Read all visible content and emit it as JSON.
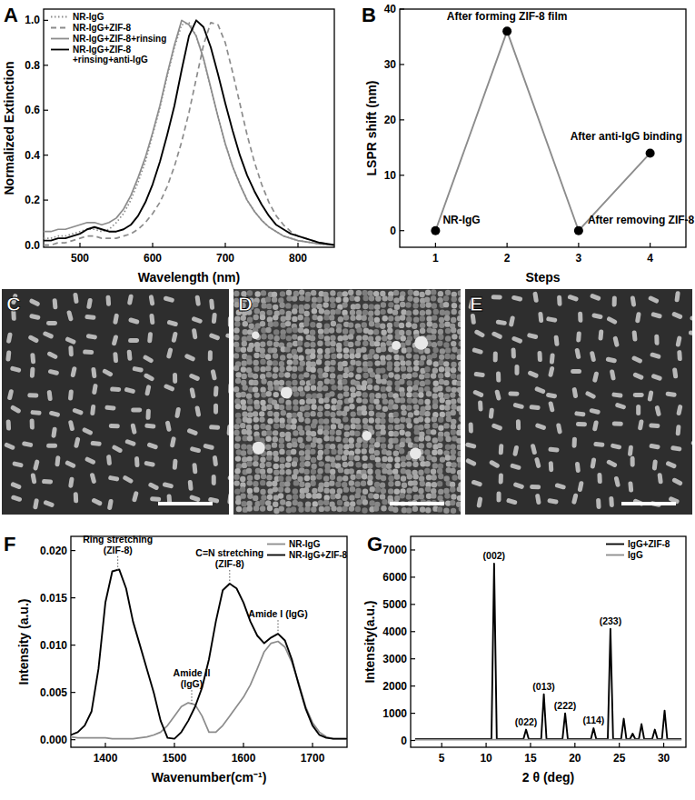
{
  "chart_data": [
    {
      "panel": "A",
      "type": "line",
      "x_label": "Wavelength (nm)",
      "y_label": "Normalized Extinction",
      "x": [
        450,
        460,
        470,
        480,
        490,
        500,
        510,
        520,
        530,
        540,
        550,
        560,
        570,
        580,
        590,
        600,
        610,
        620,
        630,
        640,
        650,
        660,
        670,
        680,
        690,
        700,
        710,
        720,
        730,
        740,
        750,
        760,
        770,
        780,
        790,
        800,
        810,
        820,
        830,
        840,
        850
      ],
      "series": [
        {
          "name": "NR-IgG",
          "color": "#8c8c8c",
          "line_style": "dotted",
          "values": [
            0.03,
            0.03,
            0.04,
            0.04,
            0.05,
            0.06,
            0.07,
            0.07,
            0.06,
            0.07,
            0.1,
            0.14,
            0.2,
            0.28,
            0.37,
            0.49,
            0.61,
            0.75,
            0.88,
            0.98,
            0.99,
            0.93,
            0.83,
            0.7,
            0.57,
            0.45,
            0.35,
            0.27,
            0.2,
            0.15,
            0.11,
            0.08,
            0.06,
            0.04,
            0.03,
            0.02,
            0.015,
            0.01,
            0.005,
            0.003,
            0
          ]
        },
        {
          "name": "NR-IgG+ZIF-8",
          "color": "#8c8c8c",
          "line_style": "dashed",
          "values": [
            0,
            0,
            0.01,
            0.01,
            0.02,
            0.03,
            0.04,
            0.04,
            0.03,
            0.03,
            0.03,
            0.04,
            0.05,
            0.07,
            0.1,
            0.14,
            0.19,
            0.26,
            0.35,
            0.46,
            0.59,
            0.74,
            0.89,
            0.99,
            0.98,
            0.9,
            0.77,
            0.63,
            0.49,
            0.37,
            0.27,
            0.19,
            0.13,
            0.09,
            0.06,
            0.04,
            0.03,
            0.02,
            0.01,
            0.005,
            0
          ]
        },
        {
          "name": "NR-IgG+ZIF-8+rinsing",
          "color": "#8c8c8c",
          "line_style": "solid",
          "values": [
            0.06,
            0.06,
            0.07,
            0.07,
            0.08,
            0.09,
            0.1,
            0.1,
            0.09,
            0.1,
            0.12,
            0.16,
            0.22,
            0.3,
            0.39,
            0.5,
            0.62,
            0.76,
            0.89,
            1.0,
            0.98,
            0.93,
            0.83,
            0.7,
            0.57,
            0.45,
            0.35,
            0.27,
            0.2,
            0.15,
            0.11,
            0.08,
            0.06,
            0.04,
            0.03,
            0.02,
            0.015,
            0.01,
            0.005,
            0.003,
            0
          ]
        },
        {
          "name": "NR-IgG+ZIF-8+rinsing+anti-IgG",
          "color": "#000000",
          "line_style": "solid",
          "values": [
            0.02,
            0.02,
            0.03,
            0.03,
            0.04,
            0.05,
            0.07,
            0.08,
            0.07,
            0.06,
            0.06,
            0.07,
            0.09,
            0.13,
            0.19,
            0.27,
            0.37,
            0.49,
            0.62,
            0.78,
            0.93,
            1.0,
            0.97,
            0.88,
            0.76,
            0.63,
            0.51,
            0.4,
            0.31,
            0.24,
            0.18,
            0.13,
            0.09,
            0.07,
            0.05,
            0.04,
            0.03,
            0.02,
            0.01,
            0.005,
            0
          ]
        }
      ],
      "xlim": [
        450,
        850
      ],
      "ylim": [
        -0.01,
        1.05
      ],
      "xticks": [
        500,
        600,
        700,
        800
      ],
      "yticks": [
        {
          "value": 0,
          "label": "0.0"
        },
        {
          "value": 0.2,
          "label": "0.2"
        },
        {
          "value": 0.4,
          "label": "0.4"
        },
        {
          "value": 0.6,
          "label": "0.6"
        },
        {
          "value": 0.8,
          "label": "0.8"
        },
        {
          "value": 1.0,
          "label": "1.0"
        }
      ],
      "legend": "upper left"
    },
    {
      "panel": "B",
      "type": "line",
      "x_label": "Steps",
      "y_label": "LSPR shift (nm)",
      "marker": "circle",
      "x": [
        1,
        2,
        3,
        4
      ],
      "series": [
        {
          "color": "#000000",
          "values": [
            0,
            36,
            0,
            14
          ]
        }
      ],
      "point_labels": [
        "NR-IgG",
        "After forming ZIF-8 film",
        "After removing ZIF-8",
        "After anti-IgG binding"
      ],
      "xlim": [
        0.5,
        4.5
      ],
      "ylim": [
        -3,
        40
      ],
      "xticks": [
        1,
        2,
        3,
        4
      ],
      "yticks": [
        0,
        10,
        20,
        30,
        40
      ]
    },
    {
      "panel": "F",
      "type": "line",
      "x_label": "Wavenumber(cm⁻¹)",
      "y_label": "Intensity (a.u.)",
      "x": [
        1350,
        1360,
        1370,
        1380,
        1390,
        1400,
        1410,
        1420,
        1430,
        1440,
        1450,
        1460,
        1470,
        1480,
        1490,
        1500,
        1510,
        1520,
        1530,
        1540,
        1550,
        1560,
        1570,
        1580,
        1590,
        1600,
        1610,
        1620,
        1630,
        1640,
        1650,
        1660,
        1670,
        1680,
        1690,
        1700,
        1710,
        1720,
        1730,
        1740,
        1750
      ],
      "series": [
        {
          "name": "NR-IgG",
          "color": "#8c8c8c",
          "values": [
            0.0003,
            0.0002,
            0.0002,
            0.0002,
            0.0002,
            0.0002,
            0.0001,
            0.0001,
            0.0001,
            0.0001,
            0.0002,
            0.0003,
            0.0005,
            0.0008,
            0.0015,
            0.0025,
            0.0035,
            0.0039,
            0.0037,
            0.0025,
            0.0008,
            0.0008,
            0.0015,
            0.0025,
            0.0035,
            0.0045,
            0.0058,
            0.0075,
            0.0093,
            0.0102,
            0.0104,
            0.0098,
            0.0082,
            0.006,
            0.0035,
            0.0018,
            0.0008,
            0.0003,
            0.0001,
            0.0001,
            0.0001
          ]
        },
        {
          "name": "NR-IgG+ZIF-8",
          "color": "#000000",
          "values": [
            0.0005,
            0.0008,
            0.0015,
            0.003,
            0.0075,
            0.0145,
            0.0178,
            0.018,
            0.016,
            0.0125,
            0.01,
            0.0075,
            0.005,
            0.002,
            0.0002,
            0.0001,
            0.0008,
            0.002,
            0.0035,
            0.0055,
            0.0085,
            0.0125,
            0.0158,
            0.0165,
            0.016,
            0.0145,
            0.0125,
            0.011,
            0.0102,
            0.0108,
            0.0112,
            0.0105,
            0.0085,
            0.0058,
            0.0033,
            0.0015,
            0.0005,
            0.0002,
            0.0001,
            0.0001,
            0.0001
          ]
        }
      ],
      "annotations": [
        {
          "text": [
            "Ring stretching",
            "(ZIF-8)"
          ],
          "x": 1418
        },
        {
          "text": [
            "Amide II",
            "(IgG)"
          ],
          "x": 1525
        },
        {
          "text": [
            "C=N stretching",
            "(ZIF-8)"
          ],
          "x": 1580
        },
        {
          "text": [
            "Amide I (IgG)"
          ],
          "x": 1650
        }
      ],
      "xlim": [
        1350,
        1750
      ],
      "ylim": [
        -0.0008,
        0.0215
      ],
      "xticks": [
        1400,
        1500,
        1600,
        1700
      ],
      "yticks": [
        {
          "value": 0,
          "label": "0.000"
        },
        {
          "value": 0.005,
          "label": "0.005"
        },
        {
          "value": 0.01,
          "label": "0.010"
        },
        {
          "value": 0.015,
          "label": "0.015"
        },
        {
          "value": 0.02,
          "label": "0.020"
        }
      ],
      "legend": "upper right"
    },
    {
      "panel": "G",
      "type": "line",
      "x_label": "2 θ (deg)",
      "y_label": "Intensity(a.u.)",
      "series": [
        {
          "name": "IgG+ZIF-8",
          "color": "#000000",
          "x": [
            2,
            10.6,
            10.9,
            11.2,
            14.2,
            14.5,
            14.8,
            16.2,
            16.5,
            16.8,
            18.6,
            18.9,
            19.2,
            21.8,
            22.1,
            22.4,
            23.7,
            24.0,
            24.3,
            25.2,
            25.5,
            25.8,
            26.2,
            26.5,
            26.8,
            27.2,
            27.5,
            27.8,
            28.7,
            29.0,
            29.3,
            29.8,
            30.1,
            30.4,
            32
          ],
          "values": [
            50,
            50,
            6500,
            50,
            50,
            400,
            50,
            50,
            1700,
            50,
            50,
            1000,
            50,
            50,
            450,
            50,
            50,
            4100,
            50,
            50,
            800,
            50,
            50,
            250,
            50,
            50,
            600,
            50,
            50,
            400,
            50,
            50,
            1100,
            50,
            50
          ]
        },
        {
          "name": "IgG",
          "color": "#8c8c8c",
          "x": [
            2,
            32
          ],
          "values": [
            30,
            30
          ]
        }
      ],
      "annotations": [
        {
          "text": "(002)",
          "x": 10.9
        },
        {
          "text": "(022)",
          "x": 14.5
        },
        {
          "text": "(013)",
          "x": 16.5
        },
        {
          "text": "(222)",
          "x": 18.9
        },
        {
          "text": "(114)",
          "x": 22.1
        },
        {
          "text": "(233)",
          "x": 24.0
        }
      ],
      "xlim": [
        1.5,
        32.5
      ],
      "ylim": [
        -250,
        7500
      ],
      "xticks": [
        5,
        10,
        15,
        20,
        25,
        30
      ],
      "yticks": [
        0,
        1000,
        2000,
        3000,
        4000,
        5000,
        6000,
        7000
      ],
      "legend": "upper right"
    }
  ],
  "micrographs": [
    {
      "panel": "C"
    },
    {
      "panel": "D"
    },
    {
      "panel": "E"
    }
  ]
}
